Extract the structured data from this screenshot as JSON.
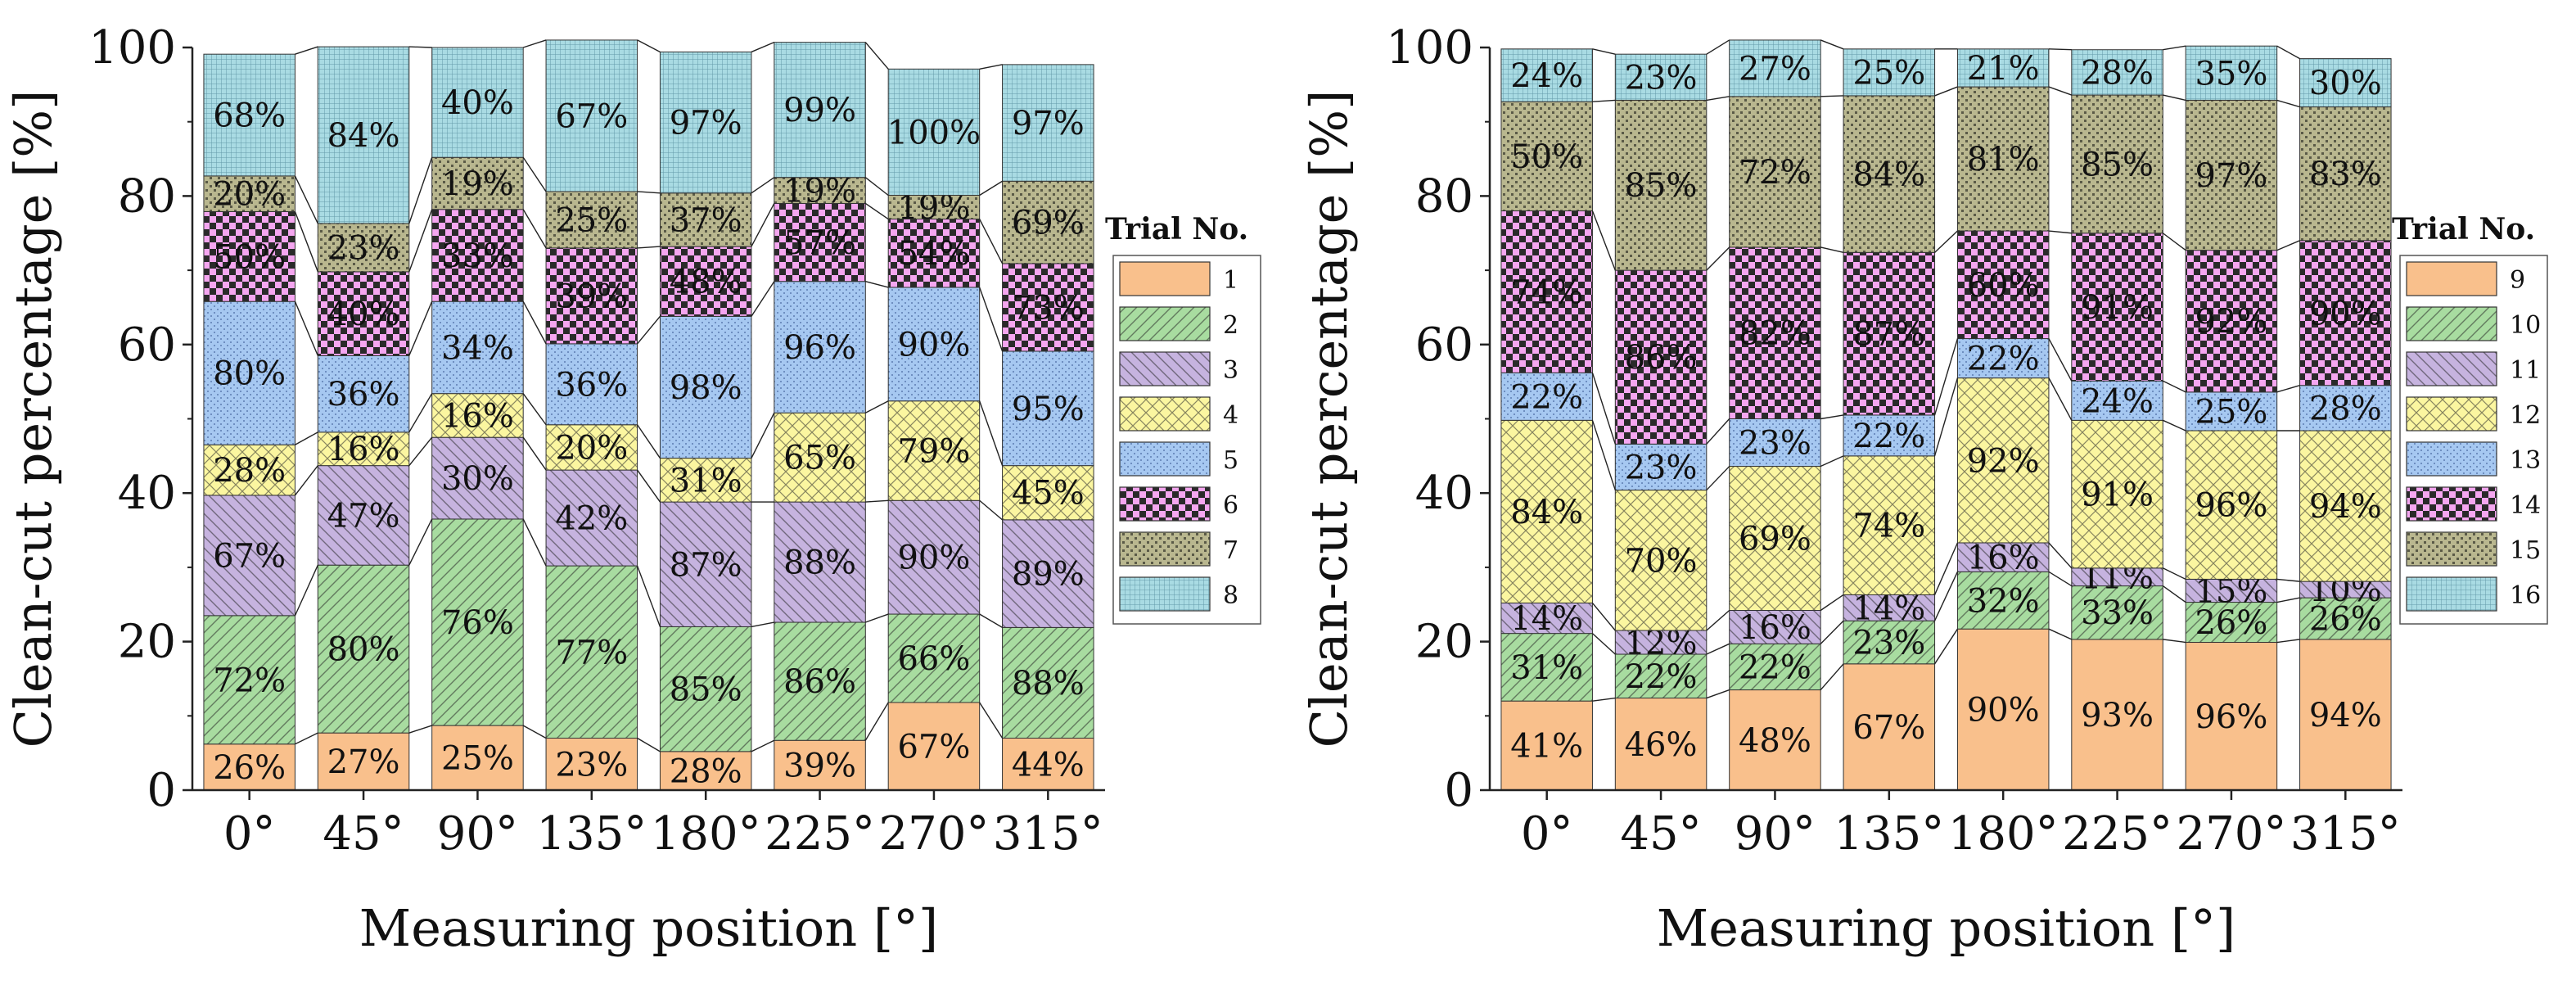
{
  "chart_data": [
    {
      "type": "bar",
      "stacked": true,
      "categories": [
        "0°",
        "45°",
        "90°",
        "135°",
        "180°",
        "225°",
        "270°",
        "315°"
      ],
      "xlabel": "Measuring position [°]",
      "ylabel": "Clean-cut percentage [%]",
      "ylim": [
        0,
        100
      ],
      "yticks": [
        "0",
        "20",
        "40",
        "60",
        "80",
        "100"
      ],
      "legend_title": "Trial No.",
      "legend_position": "right",
      "series": [
        {
          "name": "1",
          "color": "#f9c08c",
          "pattern": "solid",
          "heights": [
            6.2,
            7.7,
            8.7,
            7.0,
            5.2,
            6.7,
            11.8,
            7.0
          ],
          "labels": [
            "26%",
            "27%",
            "25%",
            "23%",
            "28%",
            "39%",
            "67%",
            "44%"
          ]
        },
        {
          "name": "2",
          "color": "#a8dca0",
          "pattern": "diag-up",
          "heights": [
            17.3,
            22.6,
            27.8,
            23.2,
            16.8,
            15.9,
            11.9,
            14.9
          ],
          "labels": [
            "72%",
            "80%",
            "76%",
            "77%",
            "85%",
            "86%",
            "66%",
            "88%"
          ]
        },
        {
          "name": "3",
          "color": "#c6b3df",
          "pattern": "diag-down",
          "heights": [
            16.2,
            13.4,
            11.0,
            12.9,
            16.8,
            16.2,
            15.3,
            14.5
          ],
          "labels": [
            "67%",
            "47%",
            "30%",
            "42%",
            "87%",
            "88%",
            "90%",
            "89%"
          ]
        },
        {
          "name": "4",
          "color": "#fbf6a0",
          "pattern": "crosshatch",
          "heights": [
            6.8,
            4.5,
            5.9,
            6.1,
            5.9,
            12.0,
            13.4,
            7.3
          ],
          "labels": [
            "28%",
            "16%",
            "16%",
            "20%",
            "31%",
            "65%",
            "79%",
            "45%"
          ]
        },
        {
          "name": "5",
          "color": "#a6c8f1",
          "pattern": "dots",
          "heights": [
            19.3,
            10.3,
            12.4,
            10.9,
            19.1,
            17.7,
            15.3,
            15.4
          ],
          "labels": [
            "80%",
            "36%",
            "34%",
            "36%",
            "98%",
            "96%",
            "90%",
            "95%"
          ]
        },
        {
          "name": "6",
          "color": "#f5a6f0",
          "pattern": "checker",
          "heights": [
            12.1,
            11.3,
            12.4,
            12.9,
            9.4,
            10.5,
            9.2,
            11.8
          ],
          "labels": [
            "50%",
            "40%",
            "33%",
            "39%",
            "48%",
            "57%",
            "54%",
            "73%"
          ]
        },
        {
          "name": "7",
          "color": "#b9b78f",
          "pattern": "grid-dots",
          "heights": [
            4.8,
            6.5,
            7.0,
            7.6,
            7.2,
            3.5,
            3.2,
            11.1
          ],
          "labels": [
            "20%",
            "23%",
            "19%",
            "25%",
            "37%",
            "19%",
            "19%",
            "69%"
          ]
        },
        {
          "name": "8",
          "color": "#a9dbe3",
          "pattern": "fine-grid",
          "heights": [
            16.4,
            23.8,
            14.8,
            20.4,
            19.0,
            18.2,
            17.0,
            15.7
          ],
          "labels": [
            "68%",
            "84%",
            "40%",
            "67%",
            "97%",
            "99%",
            "100%",
            "97%"
          ]
        }
      ]
    },
    {
      "type": "bar",
      "stacked": true,
      "categories": [
        "0°",
        "45°",
        "90°",
        "135°",
        "180°",
        "225°",
        "270°",
        "315°"
      ],
      "xlabel": "Measuring position [°]",
      "ylabel": "Clean-cut percentage [%]",
      "ylim": [
        0,
        100
      ],
      "yticks": [
        "0",
        "20",
        "40",
        "60",
        "80",
        "100"
      ],
      "legend_title": "Trial No.",
      "legend_position": "right",
      "series": [
        {
          "name": "9",
          "color": "#f9c08c",
          "pattern": "solid",
          "heights": [
            12.0,
            12.4,
            13.5,
            17.0,
            21.7,
            20.3,
            19.9,
            20.3
          ],
          "labels": [
            "41%",
            "46%",
            "48%",
            "67%",
            "90%",
            "93%",
            "96%",
            "94%"
          ]
        },
        {
          "name": "10",
          "color": "#a8dca0",
          "pattern": "diag-up",
          "heights": [
            9.1,
            5.9,
            6.2,
            5.8,
            7.7,
            7.2,
            5.4,
            5.6
          ],
          "labels": [
            "31%",
            "22%",
            "22%",
            "23%",
            "32%",
            "33%",
            "26%",
            "26%"
          ]
        },
        {
          "name": "11",
          "color": "#c6b3df",
          "pattern": "diag-down",
          "heights": [
            4.1,
            3.2,
            4.5,
            3.5,
            3.9,
            2.4,
            3.1,
            2.2
          ],
          "labels": [
            "14%",
            "12%",
            "16%",
            "14%",
            "16%",
            "11%",
            "15%",
            "10%"
          ]
        },
        {
          "name": "12",
          "color": "#fbf6a0",
          "pattern": "crosshatch",
          "heights": [
            24.6,
            18.9,
            19.4,
            18.7,
            22.2,
            19.9,
            20.0,
            20.3
          ],
          "labels": [
            "84%",
            "70%",
            "69%",
            "74%",
            "92%",
            "91%",
            "96%",
            "94%"
          ]
        },
        {
          "name": "13",
          "color": "#a6c8f1",
          "pattern": "dots",
          "heights": [
            6.4,
            6.2,
            6.4,
            5.5,
            5.3,
            5.3,
            5.2,
            6.1
          ],
          "labels": [
            "22%",
            "23%",
            "23%",
            "22%",
            "22%",
            "24%",
            "25%",
            "28%"
          ]
        },
        {
          "name": "14",
          "color": "#f5a6f0",
          "pattern": "checker",
          "heights": [
            21.8,
            23.4,
            23.1,
            21.9,
            14.5,
            19.9,
            19.1,
            19.5
          ],
          "labels": [
            "74%",
            "86%",
            "82%",
            "87%",
            "60%",
            "91%",
            "92%",
            "90%"
          ]
        },
        {
          "name": "15",
          "color": "#b9b78f",
          "pattern": "grid-dots",
          "heights": [
            14.7,
            22.9,
            20.3,
            21.1,
            19.4,
            18.6,
            20.2,
            18.0
          ],
          "labels": [
            "50%",
            "85%",
            "72%",
            "84%",
            "81%",
            "85%",
            "97%",
            "83%"
          ]
        },
        {
          "name": "16",
          "color": "#a9dbe3",
          "pattern": "fine-grid",
          "heights": [
            7.1,
            6.2,
            7.6,
            6.3,
            5.1,
            6.1,
            7.3,
            6.5
          ],
          "labels": [
            "24%",
            "23%",
            "27%",
            "25%",
            "21%",
            "28%",
            "35%",
            "30%"
          ]
        }
      ]
    }
  ]
}
